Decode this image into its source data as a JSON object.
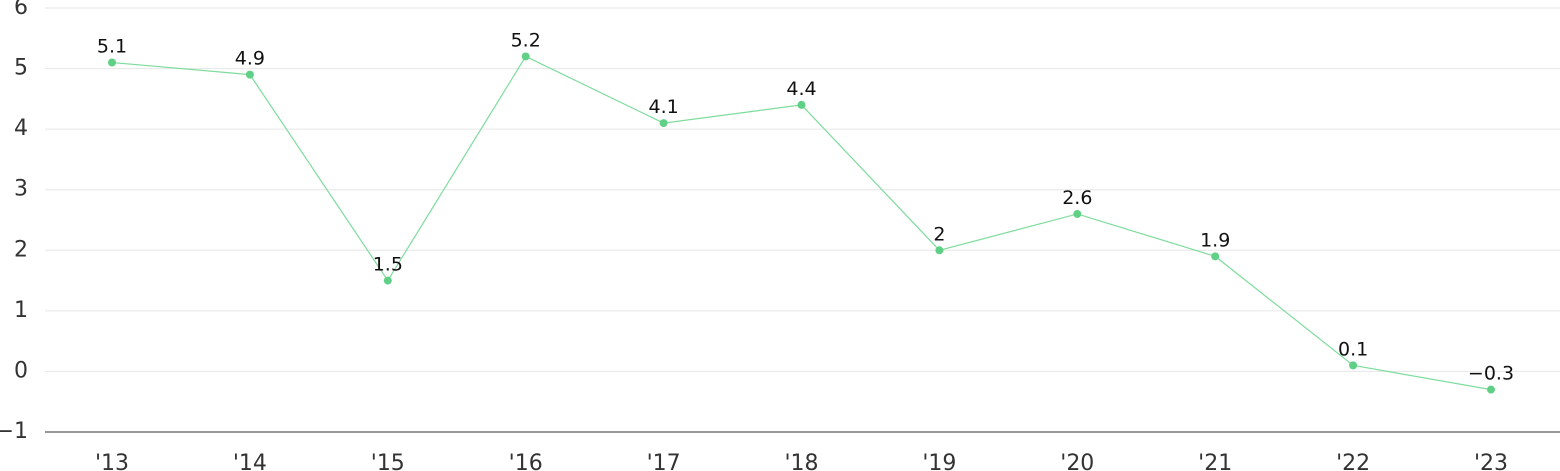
{
  "chart_data": {
    "type": "line",
    "categories": [
      "'13",
      "'14",
      "'15",
      "'16",
      "'17",
      "'18",
      "'19",
      "'20",
      "'21",
      "'22",
      "'23"
    ],
    "series": [
      {
        "values": [
          5.1,
          4.9,
          1.5,
          5.2,
          4.1,
          4.4,
          2,
          2.6,
          1.9,
          0.1,
          -0.3
        ]
      }
    ],
    "data_labels": [
      "5.1",
      "4.9",
      "1.5",
      "5.2",
      "4.1",
      "4.4",
      "2",
      "2.6",
      "1.9",
      "0.1",
      "−0.3"
    ],
    "y_ticks": [
      "6",
      "5",
      "4",
      "3",
      "2",
      "1",
      "0",
      "−1"
    ],
    "y_tick_values": [
      6,
      5,
      4,
      3,
      2,
      1,
      0,
      -1
    ],
    "ylim": [
      -1,
      6
    ],
    "grid": true,
    "line_color": "#7ddc9c",
    "marker_color": "#5fd086"
  }
}
